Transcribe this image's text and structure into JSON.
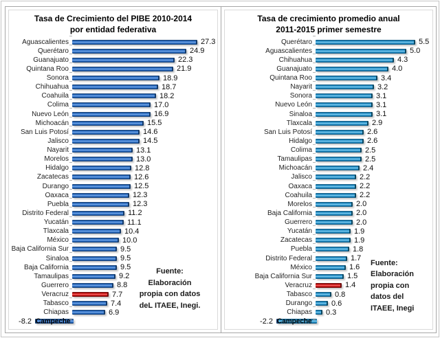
{
  "page": {
    "background": "#ffffff"
  },
  "chart_data": [
    {
      "type": "bar",
      "orientation": "horizontal",
      "title": "Tasa de Crecimiento del PIBE 2010-2014\npor entidad federativa",
      "categories": [
        "Aguascalientes",
        "Querétaro",
        "Guanajuato",
        "Quintana Roo",
        "Sonora",
        "Chihuahua",
        "Coahuila",
        "Colima",
        "Nuevo León",
        "Michoacán",
        "San Luis Potosí",
        "Jalisco",
        "Nayarit",
        "Morelos",
        "Hidalgo",
        "Zacatecas",
        "Durango",
        "Oaxaca",
        "Puebla",
        "Distrito Federal",
        "Yucatán",
        "Tlaxcala",
        "México",
        "Baja California Sur",
        "Sinaloa",
        "Baja California",
        "Tamaulipas",
        "Guerrero",
        "Veracruz",
        "Tabasco",
        "Chiapas",
        "Campeche"
      ],
      "values": [
        27.3,
        24.9,
        22.3,
        21.9,
        18.9,
        18.7,
        18.2,
        17.0,
        16.9,
        15.5,
        14.6,
        14.5,
        13.1,
        13.0,
        12.8,
        12.6,
        12.5,
        12.3,
        12.3,
        11.2,
        11.1,
        10.4,
        10.0,
        9.5,
        9.5,
        9.5,
        9.2,
        8.8,
        7.7,
        7.4,
        6.9,
        -8.2
      ],
      "highlight_category": "Veracruz",
      "highlight_color": "#da2424",
      "bar_color": "#2e6fc0",
      "xlim": [
        -10,
        30
      ],
      "value_label_decimals": 1,
      "source_note": "Fuente:\nElaboración\npropia con datos\ndeL ITAEE, Inegi."
    },
    {
      "type": "bar",
      "orientation": "horizontal",
      "title": "Tasa de crecimiento promedio anual\n2011-2015 primer semestre",
      "categories": [
        "Querétaro",
        "Aguascalientes",
        "Chihuahua",
        "Guanajuato",
        "Quintana Roo",
        "Nayarit",
        "Sonora",
        "Nuevo León",
        "Sinaloa",
        "Tlaxcala",
        "San Luis Potosí",
        "Hidalgo",
        "Colima",
        "Tamaulipas",
        "Michoacán",
        "Jalisco",
        "Oaxaca",
        "Coahuila",
        "Morelos",
        "Baja California",
        "Guerrero",
        "Yucatán",
        "Zacatecas",
        "Puebla",
        "Distrito Federal",
        "México",
        "Baja California Sur",
        "Veracruz",
        "Tabasco",
        "Durango",
        "Chiapas",
        "Campeche"
      ],
      "values": [
        5.5,
        5.0,
        4.3,
        4.0,
        3.4,
        3.2,
        3.1,
        3.1,
        3.1,
        2.9,
        2.6,
        2.6,
        2.5,
        2.5,
        2.4,
        2.2,
        2.2,
        2.2,
        2.0,
        2.0,
        2.0,
        1.9,
        1.9,
        1.8,
        1.7,
        1.6,
        1.5,
        1.4,
        0.8,
        0.6,
        0.3,
        -2.2
      ],
      "highlight_category": "Veracruz",
      "highlight_color": "#da2424",
      "bar_color": "#2b99cf",
      "xlim": [
        -3,
        6
      ],
      "value_label_decimals": 1,
      "source_note": "Fuente:\nElaboración\npropia con\ndatos del\nITAEE, Inegi"
    }
  ]
}
